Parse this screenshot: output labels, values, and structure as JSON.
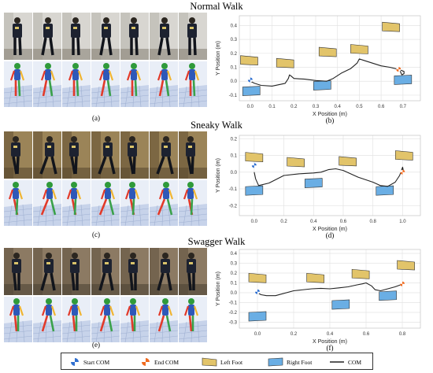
{
  "sections": [
    {
      "title": "Normal Walk",
      "photo_caption": "(a)",
      "plot_caption": "(b)",
      "colors": {
        "bg1": "#d8d6d1",
        "bg2": "#bdbab3",
        "floor": "#8a8478"
      }
    },
    {
      "title": "Sneaky Walk",
      "photo_caption": "(c)",
      "plot_caption": "(d)",
      "colors": {
        "bg1": "#9b8458",
        "bg2": "#6f5b3a",
        "floor": "#5a4a30"
      }
    },
    {
      "title": "Swagger Walk",
      "photo_caption": "(e)",
      "plot_caption": "(f)",
      "colors": {
        "bg1": "#8c7a63",
        "bg2": "#6a5b47",
        "floor": "#4d4236"
      }
    }
  ],
  "legend": {
    "start_com": "Start  COM",
    "end_com": "End COM",
    "left_foot": "Left Foot",
    "right_foot": "Right Foot",
    "com": "COM"
  },
  "colors": {
    "left_foot": "#e2c46a",
    "right_foot": "#6aaee4",
    "com": "#222222",
    "start": "#2f6fd0",
    "end": "#ef6a1f",
    "grid": "#e4e4e4"
  },
  "chart_data": [
    {
      "type": "scatter",
      "title": "",
      "xlabel": "X Position (m)",
      "ylabel": "Y Position (m)",
      "xlim": [
        -0.05,
        0.78
      ],
      "ylim": [
        -0.14,
        0.47
      ],
      "xticks": [
        0.0,
        0.1,
        0.2,
        0.3,
        0.4,
        0.5,
        0.6,
        0.7
      ],
      "xtick_labels": [
        "0.0",
        "0.1",
        "0.2",
        "0.3",
        "0.4",
        "0.5",
        "0.6",
        "0.7"
      ],
      "yticks": [
        -0.1,
        0.0,
        0.1,
        0.2,
        0.3,
        0.4
      ],
      "ytick_labels": [
        "-0.1",
        "0.0",
        "0.1",
        "0.2",
        "0.3",
        "0.4"
      ],
      "grid": true,
      "left_foot": [
        [
          -0.005,
          0.15
        ],
        [
          0.16,
          0.13
        ],
        [
          0.355,
          0.21
        ],
        [
          0.5,
          0.23
        ],
        [
          0.645,
          0.39
        ]
      ],
      "right_foot": [
        [
          0.005,
          -0.07
        ],
        [
          0.33,
          -0.03
        ],
        [
          0.7,
          0.01
        ]
      ],
      "com": [
        [
          0.0,
          0.0
        ],
        [
          0.02,
          -0.015
        ],
        [
          0.05,
          -0.03
        ],
        [
          0.1,
          -0.035
        ],
        [
          0.16,
          -0.015
        ],
        [
          0.175,
          0.02
        ],
        [
          0.18,
          0.045
        ],
        [
          0.185,
          0.04
        ],
        [
          0.2,
          0.02
        ],
        [
          0.25,
          0.015
        ],
        [
          0.3,
          0.005
        ],
        [
          0.35,
          0.0
        ],
        [
          0.38,
          0.02
        ],
        [
          0.42,
          0.06
        ],
        [
          0.46,
          0.09
        ],
        [
          0.49,
          0.13
        ],
        [
          0.5,
          0.16
        ],
        [
          0.52,
          0.15
        ],
        [
          0.56,
          0.13
        ],
        [
          0.6,
          0.11
        ],
        [
          0.64,
          0.1
        ],
        [
          0.68,
          0.085
        ],
        [
          0.705,
          0.07
        ],
        [
          0.705,
          0.055
        ],
        [
          0.695,
          0.045
        ],
        [
          0.685,
          0.08
        ]
      ],
      "start": [
        0.0,
        0.01
      ],
      "end": [
        0.68,
        0.085
      ]
    },
    {
      "type": "scatter",
      "title": "",
      "xlabel": "X Position (m)",
      "ylabel": "Y Position (m)",
      "xlim": [
        -0.1,
        1.12
      ],
      "ylim": [
        -0.26,
        0.22
      ],
      "xticks": [
        0.0,
        0.2,
        0.4,
        0.6,
        0.8,
        1.0
      ],
      "xtick_labels": [
        "0.0",
        "0.2",
        "0.4",
        "0.6",
        "0.8",
        "1.0"
      ],
      "yticks": [
        -0.2,
        -0.1,
        0.0,
        0.1,
        0.2
      ],
      "ytick_labels": [
        "-0.2",
        "-0.1",
        "0.0",
        "0.1",
        "0.2"
      ],
      "grid": true,
      "left_foot": [
        [
          0.0,
          0.09
        ],
        [
          0.28,
          0.06
        ],
        [
          0.63,
          0.065
        ],
        [
          1.01,
          0.1
        ]
      ],
      "right_foot": [
        [
          0.0,
          -0.11
        ],
        [
          0.4,
          -0.065
        ],
        [
          0.88,
          -0.11
        ]
      ],
      "com": [
        [
          0.0,
          0.0
        ],
        [
          0.01,
          -0.04
        ],
        [
          0.03,
          -0.08
        ],
        [
          0.1,
          -0.065
        ],
        [
          0.2,
          -0.02
        ],
        [
          0.3,
          -0.01
        ],
        [
          0.4,
          -0.005
        ],
        [
          0.45,
          0.0
        ],
        [
          0.5,
          0.015
        ],
        [
          0.55,
          0.02
        ],
        [
          0.6,
          0.01
        ],
        [
          0.7,
          -0.03
        ],
        [
          0.8,
          -0.06
        ],
        [
          0.85,
          -0.08
        ],
        [
          0.9,
          -0.085
        ],
        [
          0.95,
          -0.06
        ],
        [
          0.98,
          -0.02
        ],
        [
          1.0,
          0.03
        ],
        [
          1.005,
          0.01
        ],
        [
          0.995,
          0.02
        ]
      ],
      "start": [
        0.0,
        0.04
      ],
      "end": [
        1.0,
        0.0
      ]
    },
    {
      "type": "scatter",
      "title": "",
      "xlabel": "X Position (m)",
      "ylabel": "Y Position (m)",
      "xlim": [
        -0.1,
        0.9
      ],
      "ylim": [
        -0.36,
        0.44
      ],
      "xticks": [
        0.0,
        0.2,
        0.4,
        0.6,
        0.8
      ],
      "xtick_labels": [
        "0.0",
        "0.2",
        "0.4",
        "0.6",
        "0.8"
      ],
      "yticks": [
        -0.3,
        -0.2,
        -0.1,
        0.0,
        0.1,
        0.2,
        0.3,
        0.4
      ],
      "ytick_labels": [
        "-0.3",
        "-0.2",
        "-0.1",
        "0.0",
        "0.1",
        "0.2",
        "0.3",
        "0.4"
      ],
      "grid": true,
      "left_foot": [
        [
          0.0,
          0.15
        ],
        [
          0.32,
          0.15
        ],
        [
          0.57,
          0.19
        ],
        [
          0.82,
          0.28
        ]
      ],
      "right_foot": [
        [
          0.0,
          -0.24
        ],
        [
          0.46,
          -0.12
        ],
        [
          0.72,
          -0.03
        ]
      ],
      "com": [
        [
          0.0,
          0.0
        ],
        [
          0.02,
          -0.02
        ],
        [
          0.05,
          -0.03
        ],
        [
          0.1,
          -0.03
        ],
        [
          0.2,
          0.02
        ],
        [
          0.3,
          0.04
        ],
        [
          0.35,
          0.045
        ],
        [
          0.4,
          0.04
        ],
        [
          0.45,
          0.05
        ],
        [
          0.5,
          0.06
        ],
        [
          0.55,
          0.08
        ],
        [
          0.58,
          0.09
        ],
        [
          0.6,
          0.1
        ],
        [
          0.63,
          0.07
        ],
        [
          0.65,
          0.03
        ],
        [
          0.68,
          0.02
        ],
        [
          0.72,
          0.04
        ],
        [
          0.76,
          0.06
        ],
        [
          0.79,
          0.08
        ],
        [
          0.8,
          0.09
        ],
        [
          0.79,
          0.1
        ]
      ],
      "start": [
        0.0,
        0.01
      ],
      "end": [
        0.8,
        0.09
      ]
    }
  ]
}
